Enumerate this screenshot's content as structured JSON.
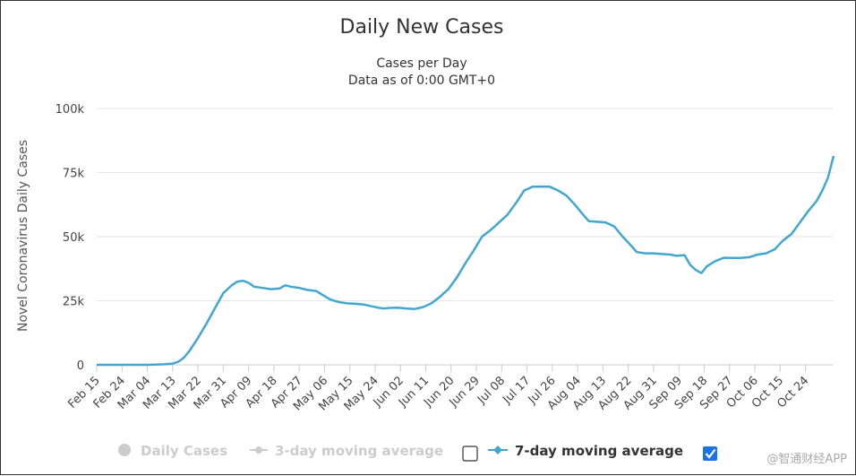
{
  "chart_data": {
    "type": "line",
    "title": "Daily New Cases",
    "subtitle": [
      "Cases per Day",
      "Data as of 0:00 GMT+0"
    ],
    "ylabel": "Novel Coronavirus Daily Cases",
    "xlabel": "",
    "ylim": [
      0,
      100000
    ],
    "yticks": [
      0,
      25000,
      50000,
      75000,
      100000
    ],
    "ytick_labels": [
      "0",
      "25k",
      "50k",
      "75k",
      "100k"
    ],
    "grid": true,
    "categories": [
      "Feb 15",
      "Feb 24",
      "Mar 04",
      "Mar 13",
      "Mar 22",
      "Mar 31",
      "Apr 09",
      "Apr 18",
      "Apr 27",
      "May 06",
      "May 15",
      "May 24",
      "Jun 02",
      "Jun 11",
      "Jun 20",
      "Jun 29",
      "Jul 08",
      "Jul 17",
      "Jul 26",
      "Aug 04",
      "Aug 13",
      "Aug 22",
      "Aug 31",
      "Sep 09",
      "Sep 18",
      "Sep 27",
      "Oct 06",
      "Oct 15",
      "Oct 24"
    ],
    "day_step": 9,
    "total_days": 262,
    "series": [
      {
        "name": "7-day moving average",
        "color": "#41a7d1",
        "points": [
          [
            0,
            0
          ],
          [
            18,
            0
          ],
          [
            24,
            200
          ],
          [
            27,
            500
          ],
          [
            29,
            1200
          ],
          [
            31,
            2800
          ],
          [
            33,
            5500
          ],
          [
            36,
            10500
          ],
          [
            39,
            16000
          ],
          [
            42,
            22000
          ],
          [
            45,
            28000
          ],
          [
            48,
            31000
          ],
          [
            50,
            32500
          ],
          [
            52,
            32800
          ],
          [
            54,
            32000
          ],
          [
            56,
            30500
          ],
          [
            59,
            30000
          ],
          [
            62,
            29500
          ],
          [
            65,
            29800
          ],
          [
            67,
            31000
          ],
          [
            69,
            30500
          ],
          [
            72,
            30000
          ],
          [
            75,
            29200
          ],
          [
            78,
            28800
          ],
          [
            80,
            27500
          ],
          [
            83,
            25500
          ],
          [
            86,
            24500
          ],
          [
            89,
            24000
          ],
          [
            92,
            23800
          ],
          [
            95,
            23500
          ],
          [
            98,
            22800
          ],
          [
            100,
            22300
          ],
          [
            102,
            22000
          ],
          [
            104,
            22200
          ],
          [
            107,
            22300
          ],
          [
            110,
            22000
          ],
          [
            113,
            21800
          ],
          [
            116,
            22500
          ],
          [
            119,
            24000
          ],
          [
            122,
            26500
          ],
          [
            125,
            29500
          ],
          [
            128,
            34000
          ],
          [
            131,
            39500
          ],
          [
            134,
            44500
          ],
          [
            137,
            50000
          ],
          [
            140,
            52500
          ],
          [
            143,
            55500
          ],
          [
            146,
            58500
          ],
          [
            149,
            63000
          ],
          [
            152,
            68000
          ],
          [
            155,
            69500
          ],
          [
            158,
            69500
          ],
          [
            161,
            69500
          ],
          [
            164,
            68000
          ],
          [
            167,
            66000
          ],
          [
            170,
            62500
          ],
          [
            173,
            58500
          ],
          [
            175,
            56000
          ],
          [
            178,
            55800
          ],
          [
            181,
            55500
          ],
          [
            184,
            54000
          ],
          [
            187,
            50000
          ],
          [
            190,
            46500
          ],
          [
            192,
            44000
          ],
          [
            195,
            43500
          ],
          [
            198,
            43500
          ],
          [
            201,
            43200
          ],
          [
            204,
            43000
          ],
          [
            206,
            42500
          ],
          [
            209,
            42800
          ],
          [
            211,
            39000
          ],
          [
            213,
            37000
          ],
          [
            215,
            35800
          ],
          [
            217,
            38500
          ],
          [
            220,
            40500
          ],
          [
            223,
            41800
          ],
          [
            226,
            41700
          ],
          [
            229,
            41700
          ],
          [
            232,
            42000
          ],
          [
            235,
            43000
          ],
          [
            238,
            43500
          ],
          [
            241,
            45000
          ],
          [
            244,
            48500
          ],
          [
            247,
            51000
          ],
          [
            250,
            55500
          ],
          [
            253,
            60000
          ],
          [
            256,
            64000
          ],
          [
            258,
            68000
          ],
          [
            260,
            73000
          ],
          [
            262,
            81500
          ]
        ]
      }
    ],
    "legend": [
      {
        "label": "Daily Cases",
        "state": "hidden",
        "color": "#cccccc"
      },
      {
        "label": "3-day moving average",
        "state": "hidden",
        "color": "#cccccc"
      },
      {
        "label": "7-day moving average",
        "state": "visible",
        "color": "#333333",
        "checked": true
      }
    ]
  },
  "watermark": "@智通财经APP"
}
